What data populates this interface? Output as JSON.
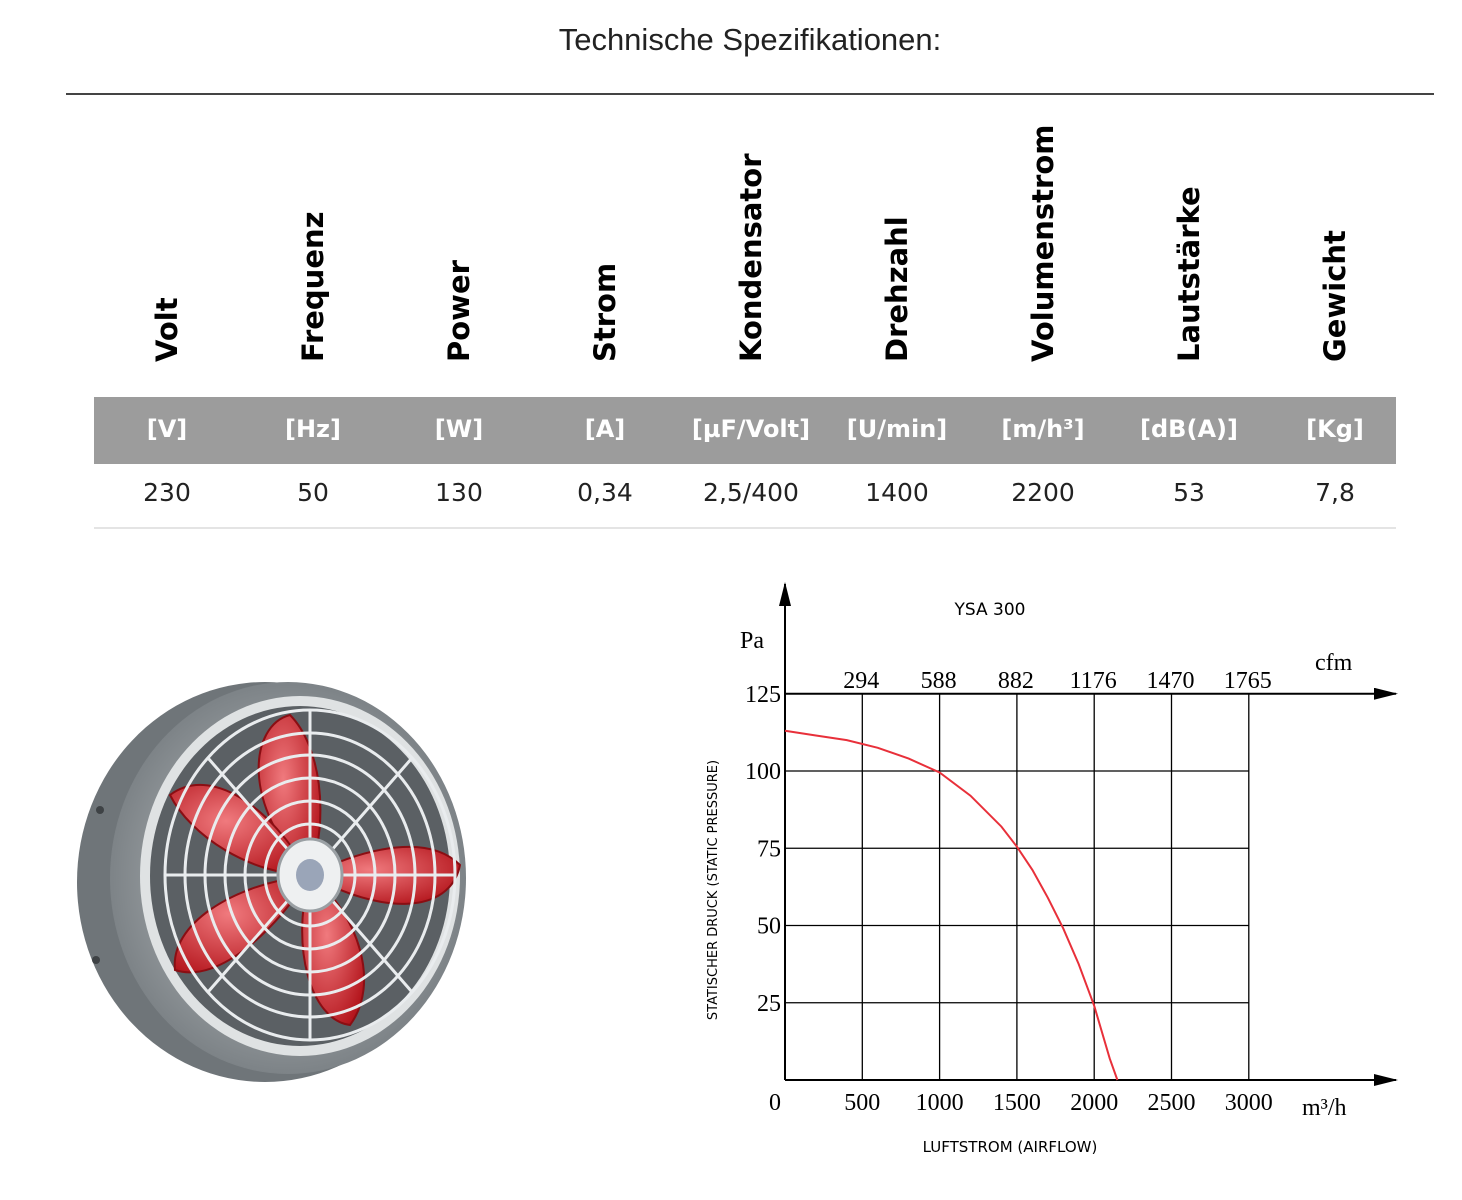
{
  "page_title": "Technische Spezifikationen:",
  "columns": [
    {
      "label": "Volt",
      "unit": "[V]",
      "value": "230"
    },
    {
      "label": "Frequenz",
      "unit": "[Hz]",
      "value": "50"
    },
    {
      "label": "Power",
      "unit": "[W]",
      "value": "130"
    },
    {
      "label": "Strom",
      "unit": "[A]",
      "value": "0,34"
    },
    {
      "label": "Kondensator",
      "unit": "[µF/Volt]",
      "value": "2,5/400"
    },
    {
      "label": "Drehzahl",
      "unit": "[U/min]",
      "value": "1400"
    },
    {
      "label": "Volumenstrom",
      "unit": "[m/h³]",
      "value": "2200"
    },
    {
      "label": "Lautstärke",
      "unit": "[dB(A)]",
      "value": "53"
    },
    {
      "label": "Gewicht",
      "unit": "[Kg]",
      "value": "7,8"
    }
  ],
  "colors": {
    "unit_bar": "#9c9c9c",
    "curve": "#e8303a",
    "fan_blade": "#d01f26",
    "fan_housing": "#9aa0a4"
  },
  "fan_image": {
    "icon": "axial-fan-icon"
  },
  "chart_data": {
    "type": "line",
    "title": "YSA 300",
    "xlabel": "LUFTSTROM (AIRFLOW)",
    "ylabel": "STATISCHER DRUCK (STATIC PRESSURE)",
    "x_unit": "m³/h",
    "y_unit": "Pa",
    "x2_unit": "cfm",
    "xlim": [
      0,
      3000
    ],
    "ylim": [
      0,
      125
    ],
    "x_ticks": [
      "0",
      "500",
      "1000",
      "1500",
      "2000",
      "2500",
      "3000"
    ],
    "y_ticks": [
      "0",
      "25",
      "50",
      "75",
      "100",
      "125"
    ],
    "x2_ticks": [
      "294",
      "588",
      "882",
      "1176",
      "1470",
      "1765"
    ],
    "grid": true,
    "x": [
      0,
      200,
      400,
      600,
      800,
      1000,
      1200,
      1400,
      1500,
      1600,
      1700,
      1800,
      1900,
      2000,
      2100,
      2150
    ],
    "y": [
      113,
      111.5,
      110,
      107.5,
      104,
      99.5,
      92,
      82,
      75.5,
      68,
      59,
      49,
      37.5,
      24,
      7,
      0
    ]
  }
}
